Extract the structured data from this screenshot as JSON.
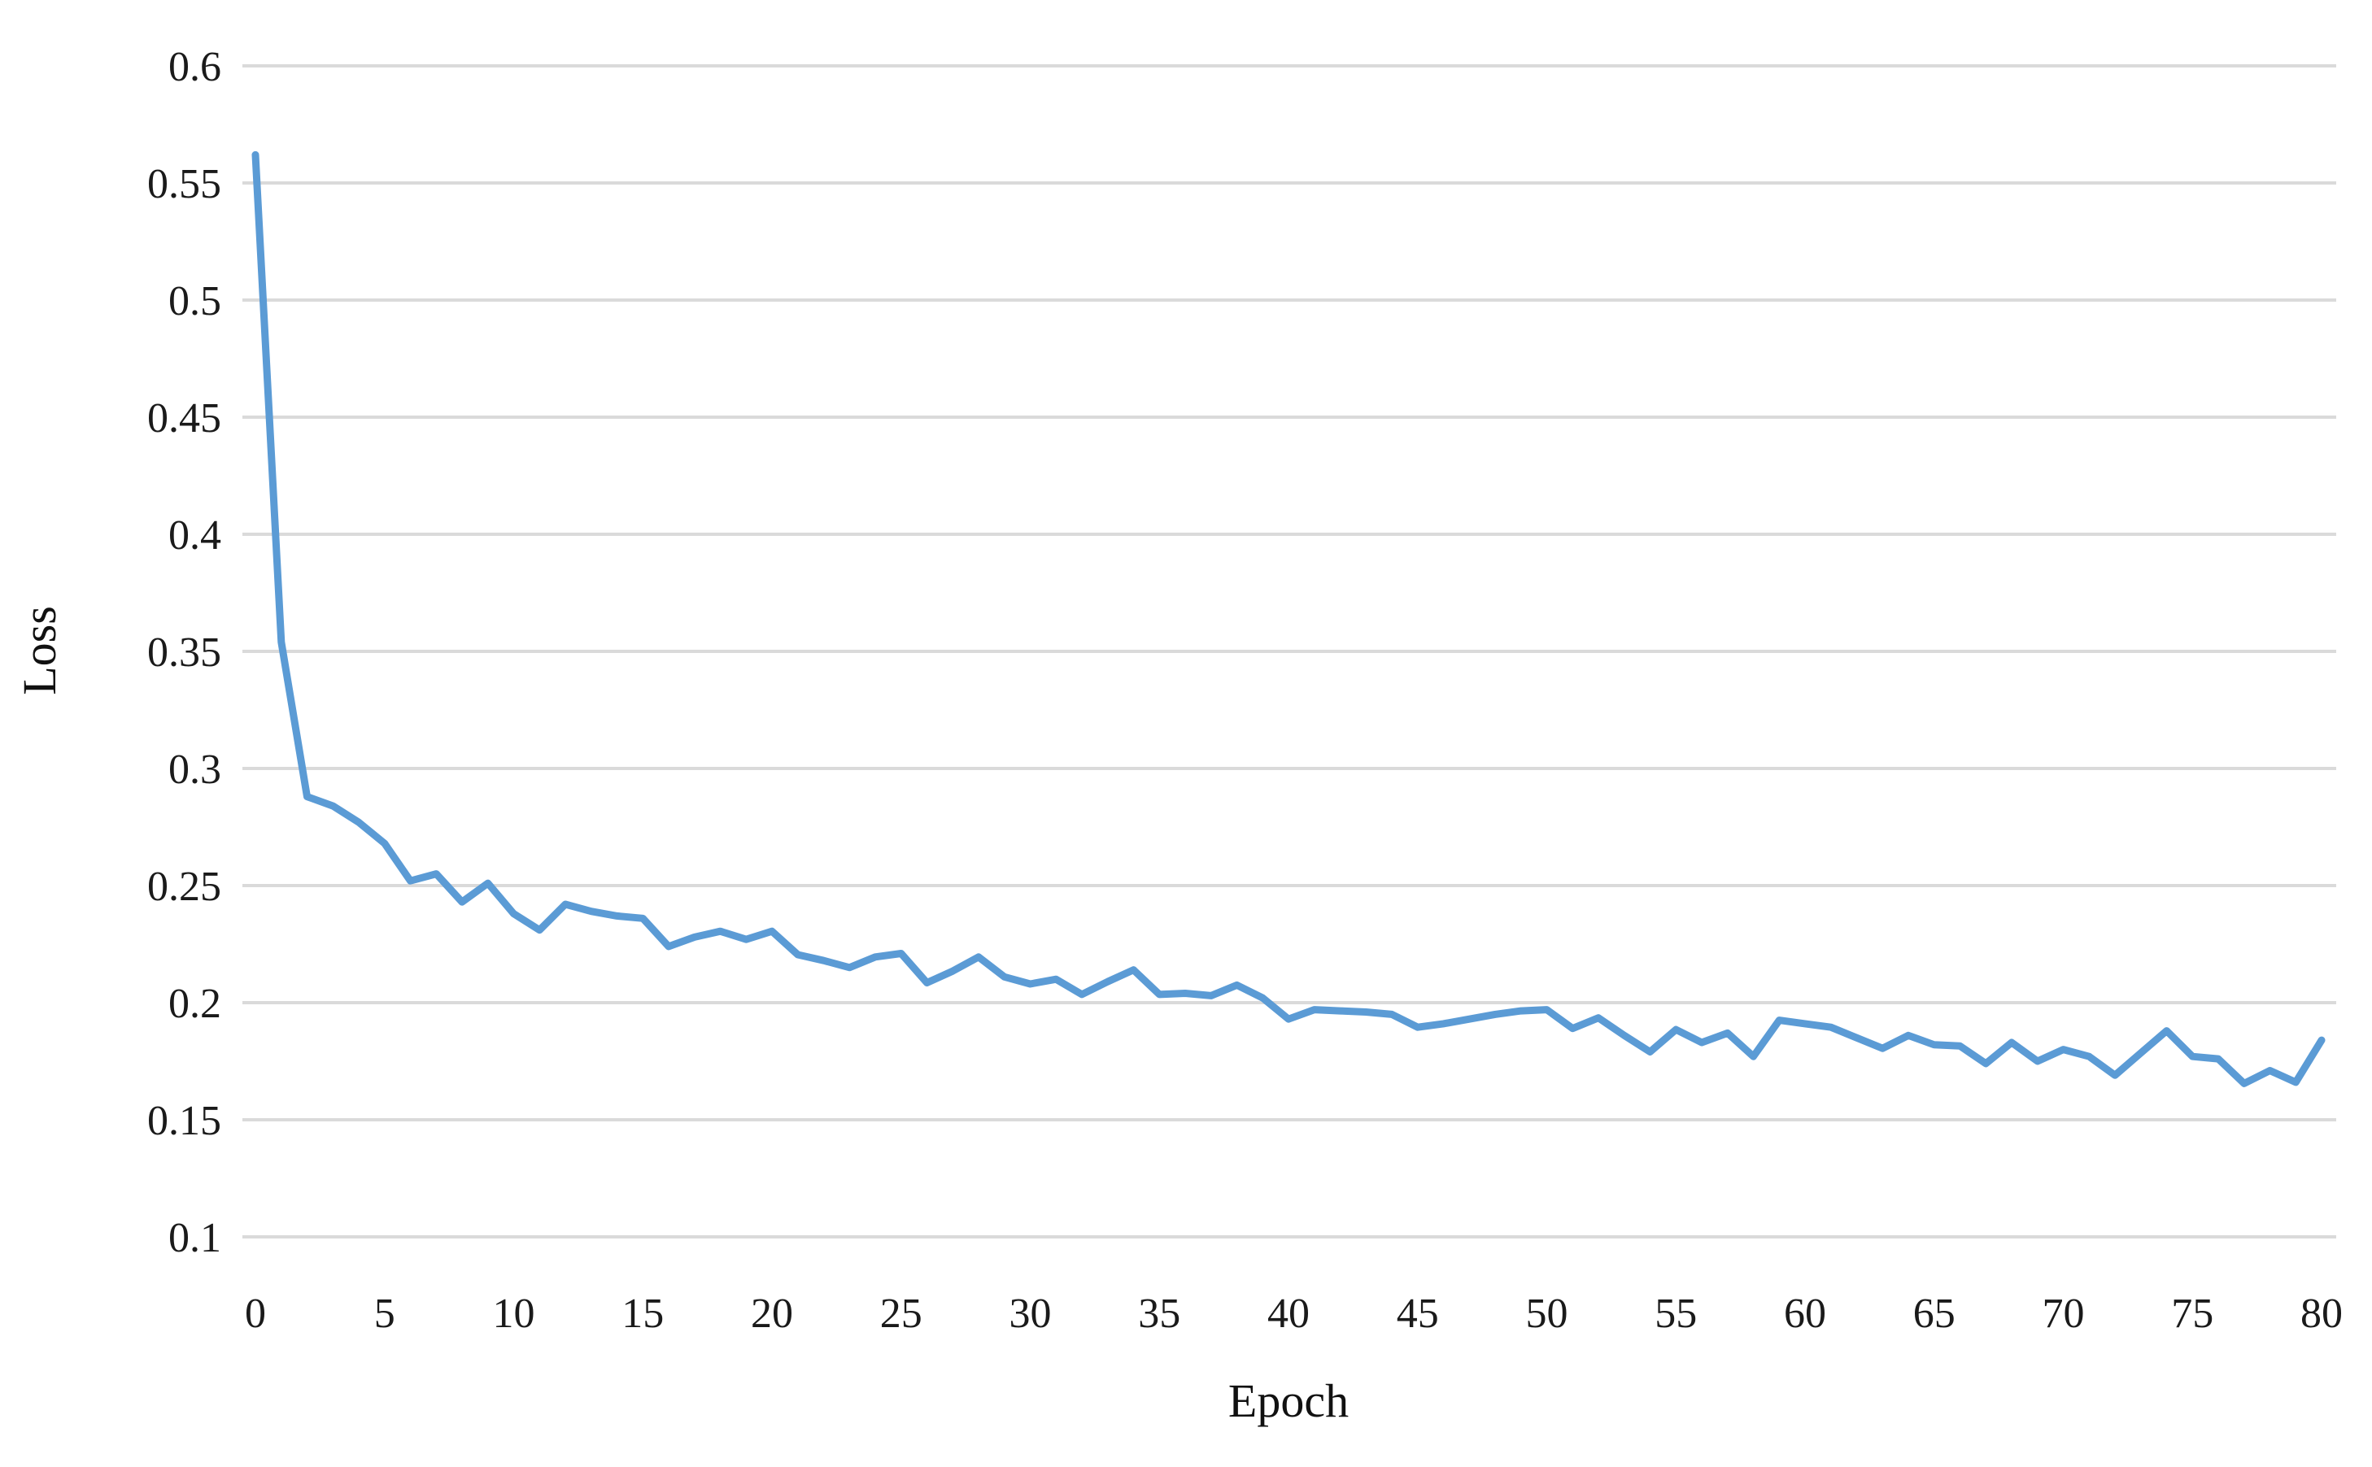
{
  "chart_data": {
    "type": "line",
    "title": "",
    "xlabel": "Epoch",
    "ylabel": "Loss",
    "grid": true,
    "legend": "none",
    "xlim": [
      0,
      80
    ],
    "ylim": [
      0.1,
      0.6
    ],
    "x_ticks": [
      {
        "value": 0,
        "label": "0"
      },
      {
        "value": 5,
        "label": "5"
      },
      {
        "value": 10,
        "label": "10"
      },
      {
        "value": 15,
        "label": "15"
      },
      {
        "value": 20,
        "label": "20"
      },
      {
        "value": 25,
        "label": "25"
      },
      {
        "value": 30,
        "label": "30"
      },
      {
        "value": 35,
        "label": "35"
      },
      {
        "value": 40,
        "label": "40"
      },
      {
        "value": 45,
        "label": "45"
      },
      {
        "value": 50,
        "label": "50"
      },
      {
        "value": 55,
        "label": "55"
      },
      {
        "value": 60,
        "label": "60"
      },
      {
        "value": 65,
        "label": "65"
      },
      {
        "value": 70,
        "label": "70"
      },
      {
        "value": 75,
        "label": "75"
      },
      {
        "value": 80,
        "label": "80"
      }
    ],
    "y_ticks": [
      {
        "value": 0.6,
        "label": "0.6"
      },
      {
        "value": 0.55,
        "label": "0.55"
      },
      {
        "value": 0.5,
        "label": "0.5"
      },
      {
        "value": 0.45,
        "label": "0.45"
      },
      {
        "value": 0.4,
        "label": "0.4"
      },
      {
        "value": 0.35,
        "label": "0.35"
      },
      {
        "value": 0.3,
        "label": "0.3"
      },
      {
        "value": 0.25,
        "label": "0.25"
      },
      {
        "value": 0.2,
        "label": "0.2"
      },
      {
        "value": 0.15,
        "label": "0.15"
      },
      {
        "value": 0.1,
        "label": "0.1"
      }
    ],
    "series": [
      {
        "name": "Loss",
        "x_start": 0,
        "x_step": 1,
        "values": [
          0.562,
          0.354,
          0.288,
          0.284,
          0.277,
          0.268,
          0.252,
          0.255,
          0.243,
          0.251,
          0.238,
          0.231,
          0.242,
          0.239,
          0.237,
          0.236,
          0.224,
          0.228,
          0.2305,
          0.227,
          0.2305,
          0.2205,
          0.218,
          0.215,
          0.2195,
          0.221,
          0.2085,
          0.2135,
          0.2195,
          0.211,
          0.208,
          0.21,
          0.2035,
          0.209,
          0.214,
          0.2035,
          0.204,
          0.203,
          0.2075,
          0.202,
          0.193,
          0.197,
          0.1965,
          0.196,
          0.195,
          0.1895,
          0.191,
          0.193,
          0.195,
          0.1965,
          0.197,
          0.189,
          0.1935,
          0.186,
          0.179,
          0.1885,
          0.183,
          0.187,
          0.177,
          0.1925,
          0.191,
          0.1895,
          0.185,
          0.1805,
          0.186,
          0.182,
          0.1815,
          0.174,
          0.183,
          0.175,
          0.18,
          0.177,
          0.169,
          0.1785,
          0.188,
          0.177,
          0.176,
          0.1655,
          0.171,
          0.166,
          0.184
        ]
      }
    ],
    "colors": {
      "line": "#5B9BD5",
      "gridline": "#DADADA",
      "background": "#FFFFFF",
      "text": "#1A1A1A"
    }
  }
}
